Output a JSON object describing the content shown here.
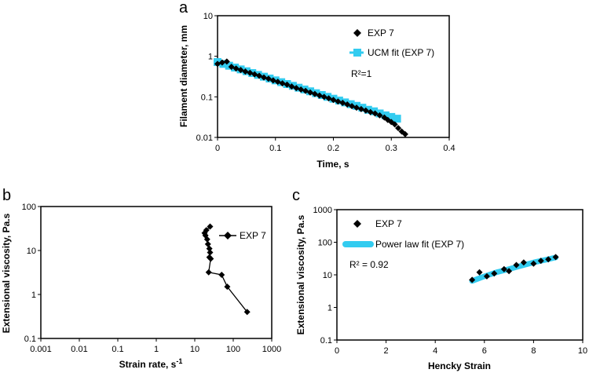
{
  "chart_data": [
    {
      "panel": "a",
      "type": "scatter",
      "xlabel": "Time, s",
      "ylabel": "Filament diameter, mm",
      "xlim": [
        0,
        0.4
      ],
      "ylim": [
        0.01,
        10
      ],
      "yscale": "log",
      "xticks": [
        "0",
        "0.1",
        "0.2",
        "0.3",
        "0.4"
      ],
      "yticks": [
        "0.01",
        "0.1",
        "1",
        "10"
      ],
      "legend_position": "top-right",
      "annotation": "R²=1",
      "colors": {
        "exp": "#000000",
        "fit": "#33ccf0"
      },
      "series": [
        {
          "name": "EXP 7",
          "marker": "diamond",
          "x": [
            0.0,
            0.008,
            0.016,
            0.024,
            0.032,
            0.04,
            0.048,
            0.056,
            0.064,
            0.072,
            0.08,
            0.088,
            0.096,
            0.104,
            0.112,
            0.12,
            0.128,
            0.136,
            0.144,
            0.152,
            0.16,
            0.168,
            0.176,
            0.184,
            0.192,
            0.2,
            0.208,
            0.216,
            0.224,
            0.232,
            0.24,
            0.248,
            0.256,
            0.264,
            0.272,
            0.28,
            0.288,
            0.294,
            0.3,
            0.306,
            0.312,
            0.318,
            0.324
          ],
          "y": [
            0.65,
            0.7,
            0.74,
            0.55,
            0.5,
            0.46,
            0.42,
            0.39,
            0.36,
            0.33,
            0.3,
            0.28,
            0.255,
            0.235,
            0.215,
            0.2,
            0.18,
            0.165,
            0.152,
            0.14,
            0.128,
            0.118,
            0.108,
            0.1,
            0.092,
            0.084,
            0.077,
            0.071,
            0.065,
            0.059,
            0.054,
            0.05,
            0.046,
            0.042,
            0.039,
            0.035,
            0.031,
            0.027,
            0.024,
            0.021,
            0.017,
            0.014,
            0.012
          ]
        },
        {
          "name": "UCM fit (EXP 7)",
          "marker": "square-line",
          "x": [
            0.0,
            0.01,
            0.02,
            0.03,
            0.04,
            0.05,
            0.06,
            0.07,
            0.08,
            0.09,
            0.1,
            0.11,
            0.12,
            0.13,
            0.14,
            0.15,
            0.16,
            0.17,
            0.18,
            0.19,
            0.2,
            0.21,
            0.22,
            0.23,
            0.24,
            0.25,
            0.26,
            0.27,
            0.28,
            0.29,
            0.3,
            0.31
          ],
          "y": [
            0.72,
            0.649,
            0.585,
            0.527,
            0.475,
            0.428,
            0.386,
            0.348,
            0.314,
            0.283,
            0.255,
            0.23,
            0.207,
            0.187,
            0.168,
            0.152,
            0.137,
            0.123,
            0.111,
            0.1,
            0.09,
            0.081,
            0.073,
            0.066,
            0.06,
            0.054,
            0.048,
            0.044,
            0.039,
            0.035,
            0.032,
            0.029
          ]
        }
      ]
    },
    {
      "panel": "b",
      "type": "line",
      "xlabel": "Strain rate, s",
      "xlabel_sup": "-1",
      "ylabel": "Extensional viscosity, Pa.s",
      "xlim": [
        0.001,
        1000
      ],
      "ylim": [
        0.1,
        100
      ],
      "xscale": "log",
      "yscale": "log",
      "xticks": [
        "0.001",
        "0.01",
        "0.1",
        "1",
        "10",
        "100",
        "1000"
      ],
      "yticks": [
        "0.1",
        "1",
        "10",
        "100"
      ],
      "legend_position": "top-right",
      "series": [
        {
          "name": "EXP 7",
          "marker": "diamond",
          "x": [
            25,
            20,
            18,
            19,
            21,
            22,
            24,
            25,
            24,
            26,
            23,
            50,
            70,
            230
          ],
          "y": [
            35,
            29,
            25,
            22,
            18,
            14,
            11,
            9,
            7,
            6.5,
            3.2,
            2.8,
            1.5,
            0.4
          ]
        }
      ]
    },
    {
      "panel": "c",
      "type": "scatter",
      "xlabel": "Hencky Strain",
      "ylabel": "Extensional viscosity, Pa.s",
      "xlim": [
        0,
        10
      ],
      "ylim": [
        0.1,
        1000
      ],
      "yscale": "log",
      "xticks": [
        "0",
        "2",
        "4",
        "6",
        "8",
        "10"
      ],
      "yticks": [
        "0.1",
        "1",
        "10",
        "100",
        "1000"
      ],
      "legend_position": "top-left",
      "annotation": "R² = 0.92",
      "series": [
        {
          "name": "EXP 7",
          "marker": "diamond",
          "x": [
            5.5,
            5.8,
            6.1,
            6.4,
            6.8,
            7.0,
            7.3,
            7.6,
            8.0,
            8.3,
            8.6,
            8.9
          ],
          "y": [
            7,
            12,
            9,
            11,
            15,
            13,
            20,
            24,
            22,
            27,
            30,
            35
          ]
        },
        {
          "name": "Power law fit (EXP 7)",
          "marker": "thick-line",
          "x": [
            5.5,
            6.0,
            6.5,
            7.0,
            7.5,
            8.0,
            8.5,
            8.9
          ],
          "y": [
            6.5,
            9,
            12,
            15,
            19,
            24,
            29,
            34
          ]
        }
      ]
    }
  ]
}
